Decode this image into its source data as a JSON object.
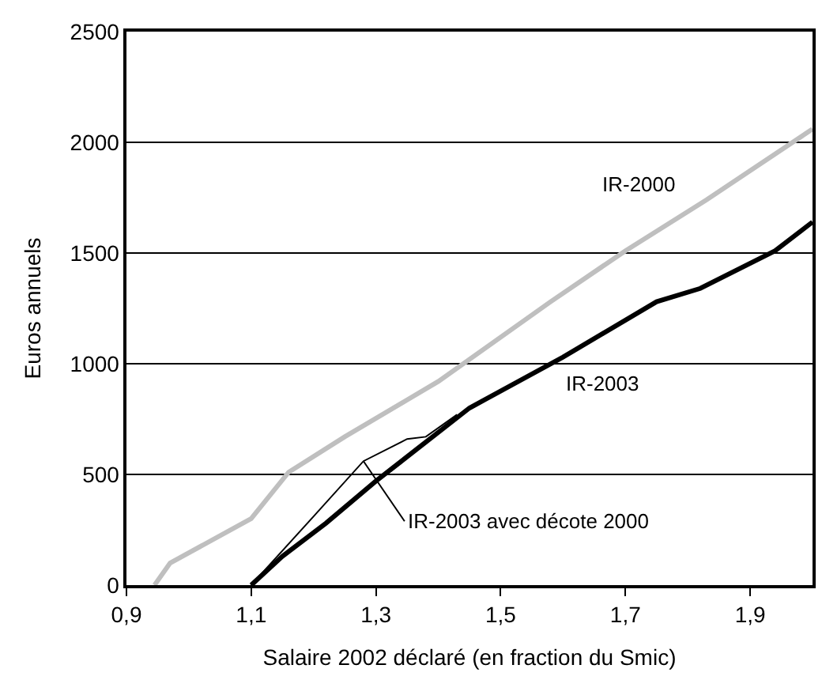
{
  "chart_data": {
    "type": "line",
    "xlabel": "Salaire 2002 déclaré (en fraction du Smic)",
    "ylabel": "Euros annuels",
    "xlim": [
      0.9,
      2.0
    ],
    "xticks": [
      {
        "value": 0.9,
        "label": "0,9"
      },
      {
        "value": 1.1,
        "label": "1,1"
      },
      {
        "value": 1.3,
        "label": "1,3"
      },
      {
        "value": 1.5,
        "label": "1,5"
      },
      {
        "value": 1.7,
        "label": "1,7"
      },
      {
        "value": 1.9,
        "label": "1,9"
      }
    ],
    "ylim": [
      0,
      2500
    ],
    "yticks": [
      0,
      500,
      1000,
      1500,
      2000,
      2500
    ],
    "grid": "y",
    "legend": false,
    "marker": "none",
    "line_style": "solid",
    "series": [
      {
        "name": "IR-2000",
        "color": "#bfbfbf",
        "x": [
          0.945,
          0.97,
          1.1,
          1.16,
          1.25,
          1.4,
          1.58,
          1.7,
          1.83,
          2.0
        ],
        "values": [
          0,
          100,
          300,
          510,
          670,
          920,
          1280,
          1510,
          1740,
          2060
        ]
      },
      {
        "name": "IR-2003",
        "color": "#000000",
        "x": [
          1.1,
          1.15,
          1.22,
          1.3,
          1.45,
          1.6,
          1.75,
          1.82,
          1.94,
          2.0
        ],
        "values": [
          0,
          130,
          280,
          470,
          800,
          1030,
          1280,
          1340,
          1510,
          1640
        ]
      },
      {
        "color": "#000000",
        "x": [
          1.1,
          1.2,
          1.28,
          1.35,
          1.38,
          1.43
        ],
        "values": [
          0,
          310,
          560,
          660,
          670,
          770
        ]
      }
    ],
    "annotations": [
      {
        "text": "IR-2003 avec décote 2000",
        "x": 1.28,
        "y": 560
      }
    ]
  }
}
